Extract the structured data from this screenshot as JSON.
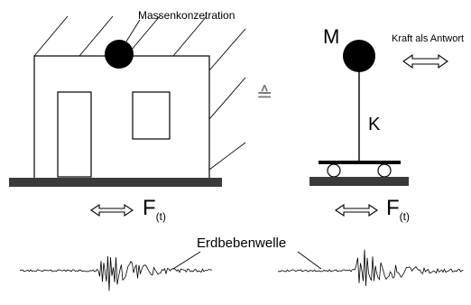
{
  "labels": {
    "mass_concentration": "Massenkonzetration",
    "reaction_force": "Kraft als Antwort",
    "mass_symbol": "M",
    "stiffness_symbol": "K",
    "equivalence_symbol": "≙",
    "force_left_main": "F",
    "force_left_sub": "(t)",
    "force_right_main": "F",
    "force_right_sub": "(t)",
    "wave": "Erdbebenwelle"
  },
  "colors": {
    "ink": "#000000",
    "ground": "#3a3a3a",
    "background": "#ffffff"
  }
}
